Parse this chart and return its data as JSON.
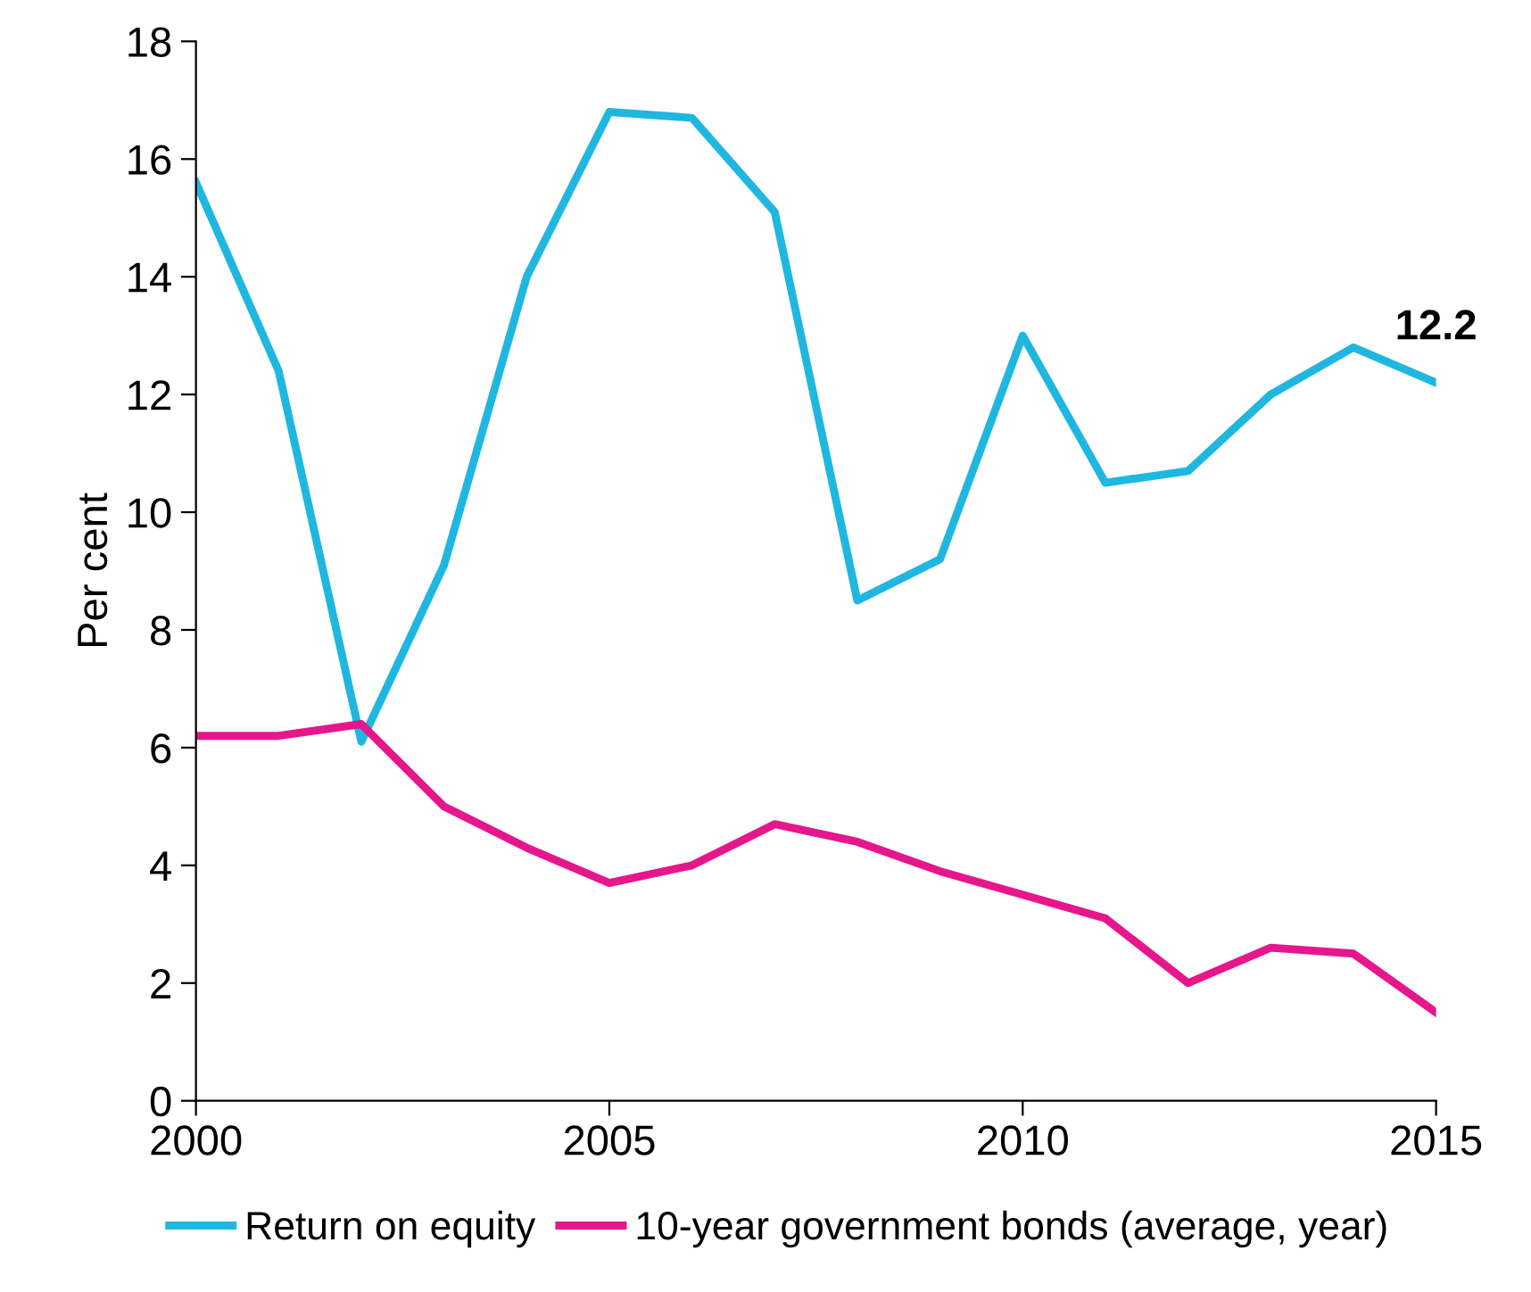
{
  "chart_data": {
    "type": "line",
    "ylabel": "Per cent",
    "x": [
      2000,
      2001,
      2002,
      2003,
      2004,
      2005,
      2006,
      2007,
      2008,
      2009,
      2010,
      2011,
      2012,
      2013,
      2014,
      2015
    ],
    "series": [
      {
        "name": "Return on equity",
        "color": "#1fb7e0",
        "values": [
          15.6,
          12.4,
          6.1,
          9.1,
          14.0,
          16.8,
          16.7,
          15.1,
          8.5,
          9.2,
          13.0,
          10.5,
          10.7,
          12.0,
          12.8,
          12.2
        ]
      },
      {
        "name": "10-year government bonds (average, year)",
        "color": "#e6168c",
        "values": [
          6.2,
          6.2,
          6.4,
          5.0,
          4.3,
          3.7,
          4.0,
          4.7,
          4.4,
          3.9,
          3.5,
          3.1,
          2.0,
          2.6,
          2.5,
          1.5
        ]
      }
    ],
    "annotations": [
      {
        "text": "12.2",
        "x": 2015,
        "y": 12.2
      }
    ],
    "xlim": [
      2000,
      2015
    ],
    "xticks": [
      2000,
      2005,
      2010,
      2015
    ],
    "ylim": [
      0,
      18
    ],
    "yticks": [
      0,
      2,
      4,
      6,
      8,
      10,
      12,
      14,
      16,
      18
    ],
    "grid": false,
    "legend": "bottom",
    "marker": "none",
    "line_style": "solid"
  }
}
